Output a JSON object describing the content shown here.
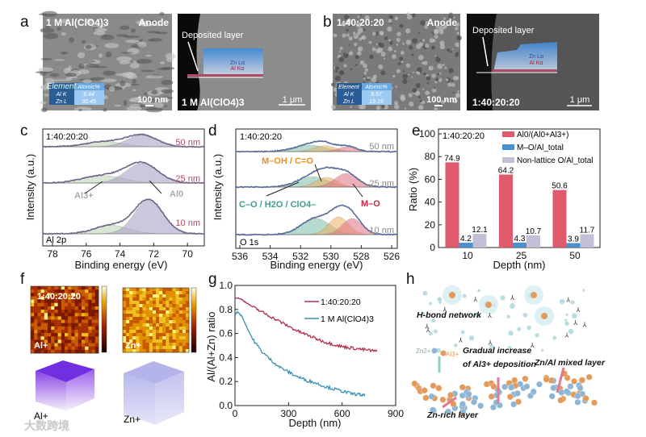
{
  "panels": {
    "a": {
      "letter": "a",
      "sem_label": "1 M Al(ClO4)3",
      "sem_corner": "Anode",
      "scale_sem": "100 nm",
      "table": {
        "headers": [
          "Element",
          "Atomic%"
        ],
        "rows": [
          [
            "Al K",
            "6.44"
          ],
          [
            "Zn L",
            "30.45"
          ]
        ]
      },
      "tem_callout": "Deposited layer",
      "tem_zn": "Zn Lα",
      "tem_al": "Al Kα",
      "tem_label": "1 M Al(ClO4)3",
      "scale_tem": "1 μm"
    },
    "b": {
      "letter": "b",
      "sem_label": "1:40:20:20",
      "sem_corner": "Anode",
      "scale_sem": "100 nm",
      "table": {
        "headers": [
          "Element",
          "Atomic%"
        ],
        "rows": [
          [
            "Al K",
            "8.57"
          ],
          [
            "Zn L",
            "19.19"
          ]
        ]
      },
      "tem_callout": "Deposited layer",
      "tem_zn": "Zn Lα",
      "tem_al": "Al Kα",
      "tem_label": "1:40:20:20",
      "scale_tem": "1 μm"
    },
    "f": {
      "letter": "f",
      "map_label": "1:40:20:20",
      "al_label": "Al+",
      "zn_label": "Zn+",
      "al_cube_label": "Al+",
      "zn_cube_label": "Zn+"
    },
    "h": {
      "letter": "h",
      "hbond": "H-bond network",
      "zn_ion": "Zn2+",
      "al_ion": "Al3+",
      "gradual1": "Gradual increase",
      "gradual2": "of Al3+ deposition",
      "mixed": "Zn/Al mixed layer",
      "znrich": "Zn-rich layer",
      "colors": {
        "zn": "#8db6d6",
        "al": "#e39a5a"
      }
    }
  },
  "watermark": "大数跨境",
  "chart_data": [
    {
      "id": "c",
      "letter": "c",
      "type": "line",
      "title": "",
      "annotation": "1:40:20:20",
      "core_level": "Al 2p",
      "xlabel": "Binding energy (eV)",
      "ylabel": "Intensity (a.u.)",
      "xlim": [
        78.6,
        69
      ],
      "xticks": [
        "78",
        "76",
        "74",
        "72",
        "70"
      ],
      "peak_labels": {
        "al3": "Al3+",
        "al0": "Al0"
      },
      "series": [
        {
          "name": "10 nm",
          "components": [
            {
              "label": "Al3+",
              "center": 74.5,
              "sigma": 1.0,
              "amp": 0.25
            },
            {
              "label": "Al0",
              "center": 72.3,
              "sigma": 0.85,
              "amp": 1.0
            }
          ]
        },
        {
          "name": "25 nm",
          "components": [
            {
              "label": "Al3+",
              "center": 75.0,
              "sigma": 1.2,
              "amp": 0.22
            },
            {
              "label": "Al0",
              "center": 72.7,
              "sigma": 0.95,
              "amp": 0.58
            }
          ]
        },
        {
          "name": "50 nm",
          "components": [
            {
              "label": "Al3+",
              "center": 74.9,
              "sigma": 1.1,
              "amp": 0.15
            },
            {
              "label": "Al0",
              "center": 72.7,
              "sigma": 0.9,
              "amp": 0.34
            }
          ]
        }
      ],
      "colors": {
        "data": "#6f6486",
        "al3": "#b9d3b0",
        "al0": "#a69bc4",
        "label": "#b04a6a"
      }
    },
    {
      "id": "d",
      "letter": "d",
      "type": "line",
      "annotation": "1:40:20:20",
      "core_level": "O 1s",
      "xlabel": "Binding energy (eV)",
      "ylabel": "Intensity (a.u.)",
      "xlim": [
        536.3,
        525.6
      ],
      "xticks": [
        "536",
        "534",
        "532",
        "530",
        "528",
        "526"
      ],
      "peak_labels": {
        "moh": "M–OH / C=O",
        "co": "C–O / H2O / ClO4–",
        "mo": "M–O"
      },
      "series": [
        {
          "name": "10 nm",
          "components": [
            {
              "label": "C–O",
              "center": 531.0,
              "sigma": 0.95,
              "amp": 0.5
            },
            {
              "label": "M–OH",
              "center": 529.5,
              "sigma": 0.65,
              "amp": 0.55
            },
            {
              "label": "M–O",
              "center": 528.6,
              "sigma": 0.65,
              "amp": 0.5
            }
          ]
        },
        {
          "name": "25 nm",
          "components": [
            {
              "label": "C–O",
              "center": 531.2,
              "sigma": 1.0,
              "amp": 0.32
            },
            {
              "label": "M–OH",
              "center": 530.3,
              "sigma": 0.7,
              "amp": 0.3
            },
            {
              "label": "M–O",
              "center": 529.0,
              "sigma": 0.75,
              "amp": 0.42
            }
          ]
        },
        {
          "name": "50 nm",
          "components": [
            {
              "label": "C–O",
              "center": 531.4,
              "sigma": 1.0,
              "amp": 0.2
            },
            {
              "label": "M–OH",
              "center": 530.4,
              "sigma": 0.7,
              "amp": 0.18
            },
            {
              "label": "M–O",
              "center": 528.9,
              "sigma": 0.6,
              "amp": 0.15
            }
          ]
        }
      ],
      "colors": {
        "data": "#5a6a98",
        "co": "#7cc0a8",
        "moh": "#f0b060",
        "mo": "#e07080",
        "moh_label": "#e8902a",
        "co_label": "#3f9e8a",
        "mo_label": "#c8284a",
        "label": "#888"
      }
    },
    {
      "id": "e",
      "letter": "e",
      "type": "bar",
      "annotation": "1:40:20:20",
      "xlabel": "Depth (nm)",
      "ylabel": "Ratio (%)",
      "categories": [
        "10",
        "25",
        "50"
      ],
      "ylim": [
        0,
        100
      ],
      "yticks": [
        "0",
        "20",
        "40",
        "60",
        "80",
        "100"
      ],
      "legend": "top-right",
      "series": [
        {
          "name": "Al0/(Al0+Al3+)",
          "values": [
            74.9,
            64.2,
            50.6
          ],
          "labels": [
            "74.9",
            "64.2",
            "50.6"
          ],
          "color": "#e05a6e"
        },
        {
          "name": "M–O/Al_total",
          "values": [
            4.2,
            4.3,
            3.9
          ],
          "labels": [
            "4.2",
            "4.3",
            "3.9"
          ],
          "color": "#4a90d0"
        },
        {
          "name": "Non-lattice O/Al_total",
          "values": [
            12.1,
            10.7,
            11.7
          ],
          "labels": [
            "12.1",
            "10.7",
            "11.7"
          ],
          "color": "#c4bed6"
        }
      ]
    },
    {
      "id": "g",
      "letter": "g",
      "type": "line",
      "xlabel": "Depth (nm)",
      "ylabel": "Al/(Al+Zn) ratio",
      "xlim": [
        0,
        900
      ],
      "ylim": [
        0,
        1.0
      ],
      "xticks": [
        "0",
        "300",
        "600",
        "900"
      ],
      "yticks": [
        "0.0",
        "0.2",
        "0.4",
        "0.6",
        "0.8",
        "1.0"
      ],
      "legend": "top-right",
      "series": [
        {
          "name": "1:40:20:20",
          "color": "#b0304e",
          "x": [
            0,
            30,
            60,
            100,
            150,
            200,
            250,
            300,
            350,
            400,
            450,
            500,
            550,
            600,
            650,
            700,
            750,
            800
          ],
          "y": [
            0.9,
            0.89,
            0.86,
            0.82,
            0.78,
            0.74,
            0.7,
            0.66,
            0.62,
            0.59,
            0.56,
            0.53,
            0.51,
            0.49,
            0.48,
            0.47,
            0.46,
            0.45
          ]
        },
        {
          "name": "1 M Al(ClO4)3",
          "color": "#3a90b0",
          "x": [
            0,
            15,
            40,
            70,
            100,
            150,
            200,
            250,
            300,
            350,
            400,
            450,
            500,
            550,
            600,
            650,
            700,
            730
          ],
          "y": [
            0.76,
            0.78,
            0.74,
            0.64,
            0.55,
            0.45,
            0.38,
            0.32,
            0.28,
            0.24,
            0.21,
            0.19,
            0.16,
            0.14,
            0.12,
            0.1,
            0.09,
            0.08
          ]
        }
      ]
    }
  ]
}
